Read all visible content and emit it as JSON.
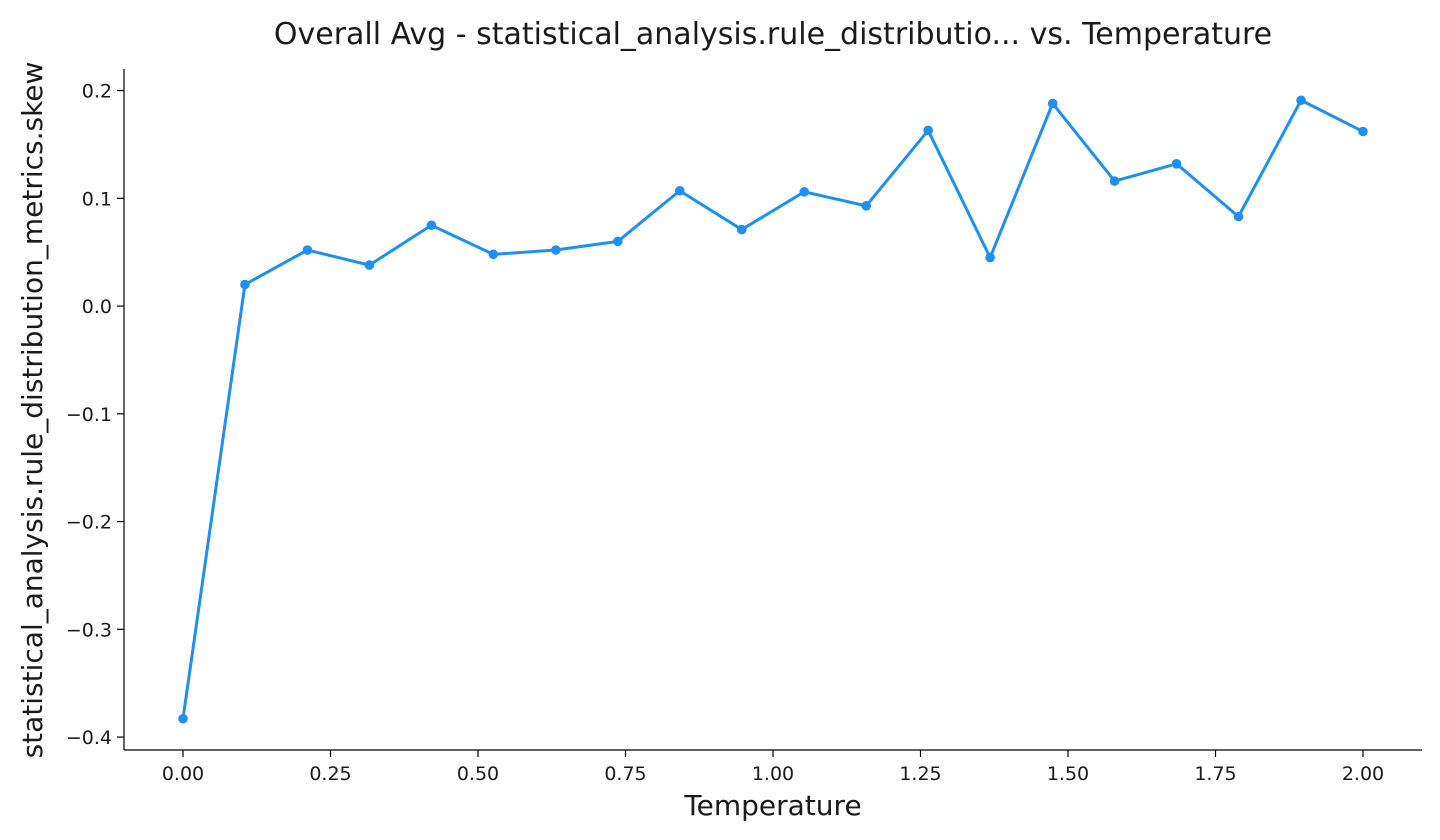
{
  "chart_data": {
    "type": "line",
    "title": "Overall Avg - statistical_analysis.rule_distributio... vs. Temperature",
    "xlabel": "Temperature",
    "ylabel": "statistical_analysis.rule_distribution_metrics.skew",
    "xlim": [
      -0.1,
      2.1
    ],
    "ylim": [
      -0.412,
      0.22
    ],
    "x_ticks": [
      0.0,
      0.25,
      0.5,
      0.75,
      1.0,
      1.25,
      1.5,
      1.75,
      2.0
    ],
    "x_tick_labels": [
      "0.00",
      "0.25",
      "0.50",
      "0.75",
      "1.00",
      "1.25",
      "1.50",
      "1.75",
      "2.00"
    ],
    "y_ticks": [
      0.2,
      0.1,
      0.0,
      -0.1,
      -0.2,
      -0.3,
      -0.4
    ],
    "y_tick_labels": [
      "0.2",
      "0.1",
      "0.0",
      "−0.1",
      "−0.2",
      "−0.3",
      "−0.4"
    ],
    "grid": false,
    "color": "#1f8ff0",
    "series": [
      {
        "x": [
          0.0,
          0.105,
          0.211,
          0.316,
          0.421,
          0.526,
          0.632,
          0.737,
          0.842,
          0.947,
          1.053,
          1.158,
          1.263,
          1.368,
          1.474,
          1.579,
          1.684,
          1.789,
          1.895,
          2.0
        ],
        "values": [
          -0.383,
          0.02,
          0.052,
          0.038,
          0.075,
          0.048,
          0.052,
          0.06,
          0.107,
          0.071,
          0.106,
          0.093,
          0.163,
          0.045,
          0.188,
          0.116,
          0.132,
          0.083,
          0.191,
          0.162
        ]
      }
    ]
  }
}
